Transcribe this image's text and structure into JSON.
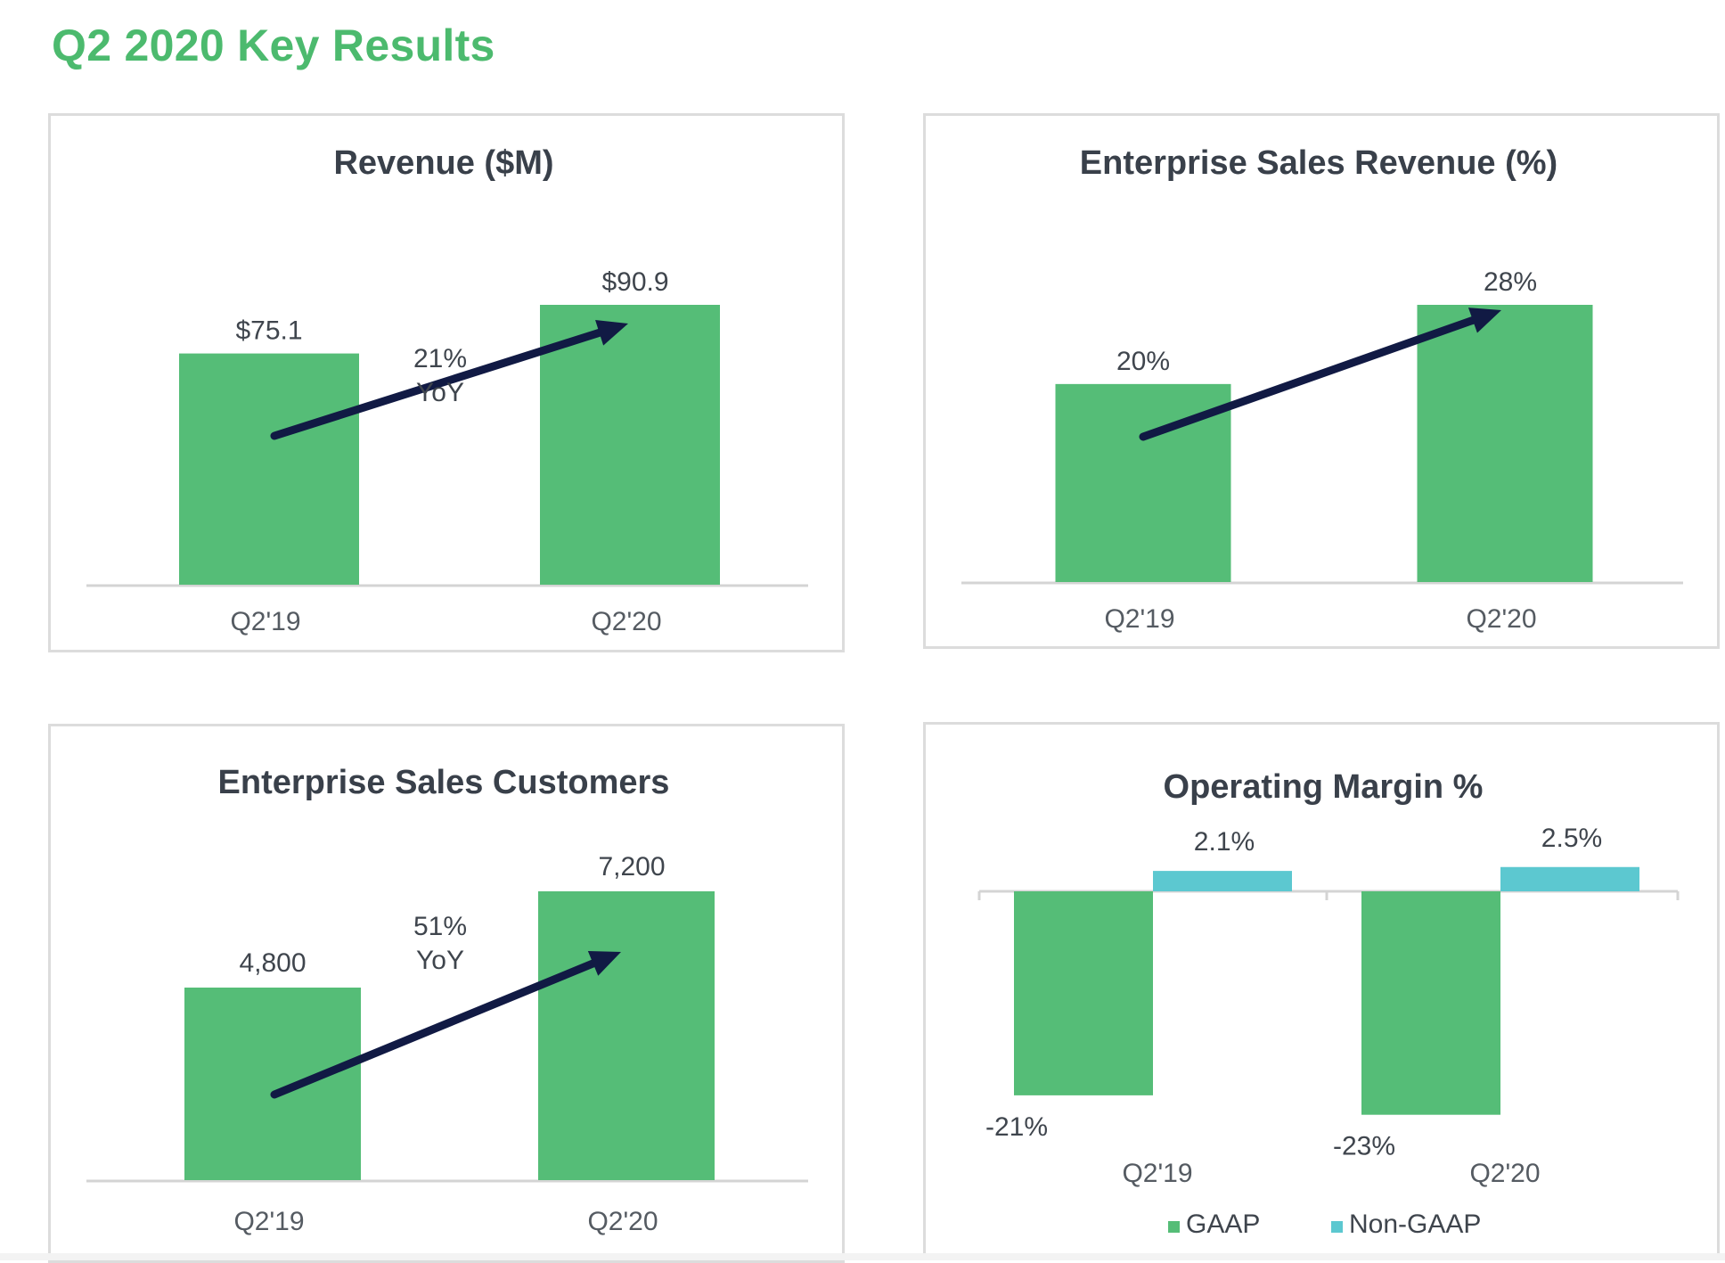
{
  "page": {
    "title": "Q2 2020 Key Results"
  },
  "colors": {
    "title": "#4cba6e",
    "bar": "#55bd77",
    "bar_secondary": "#5cc8d0",
    "arrow": "#111a44",
    "axis": "#d4d4d4"
  },
  "chart_data": [
    {
      "id": "revenue",
      "type": "bar",
      "title": "Revenue ($M)",
      "categories": [
        "Q2'19",
        "Q2'20"
      ],
      "values": [
        75.1,
        90.9
      ],
      "value_labels": [
        "$75.1",
        "$90.9"
      ],
      "annotation": [
        "21%",
        "YoY"
      ],
      "ylim": [
        0,
        100
      ],
      "legend": []
    },
    {
      "id": "enterprise-sales-revenue",
      "type": "bar",
      "title": "Enterprise Sales Revenue (%)",
      "categories": [
        "Q2'19",
        "Q2'20"
      ],
      "values": [
        20,
        28
      ],
      "value_labels": [
        "20%",
        "28%"
      ],
      "annotation": [],
      "ylim": [
        0,
        35
      ],
      "legend": []
    },
    {
      "id": "enterprise-sales-customers",
      "type": "bar",
      "title": "Enterprise Sales Customers",
      "categories": [
        "Q2'19",
        "Q2'20"
      ],
      "values": [
        4800,
        7200
      ],
      "value_labels": [
        "4,800",
        "7,200"
      ],
      "annotation": [
        "51%",
        "YoY"
      ],
      "ylim": [
        0,
        8000
      ],
      "legend": []
    },
    {
      "id": "operating-margin",
      "type": "bar",
      "title": "Operating Margin %",
      "categories": [
        "Q2'19",
        "Q2'20"
      ],
      "series": [
        {
          "name": "GAAP",
          "values": [
            -21,
            -23
          ],
          "value_labels": [
            "-21%",
            "-23%"
          ]
        },
        {
          "name": "Non-GAAP",
          "values": [
            2.1,
            2.5
          ],
          "value_labels": [
            "2.1%",
            "2.5%"
          ]
        }
      ],
      "ylim": [
        -25,
        5
      ],
      "legend": [
        "GAAP",
        "Non-GAAP"
      ],
      "legend_position": "bottom"
    }
  ]
}
